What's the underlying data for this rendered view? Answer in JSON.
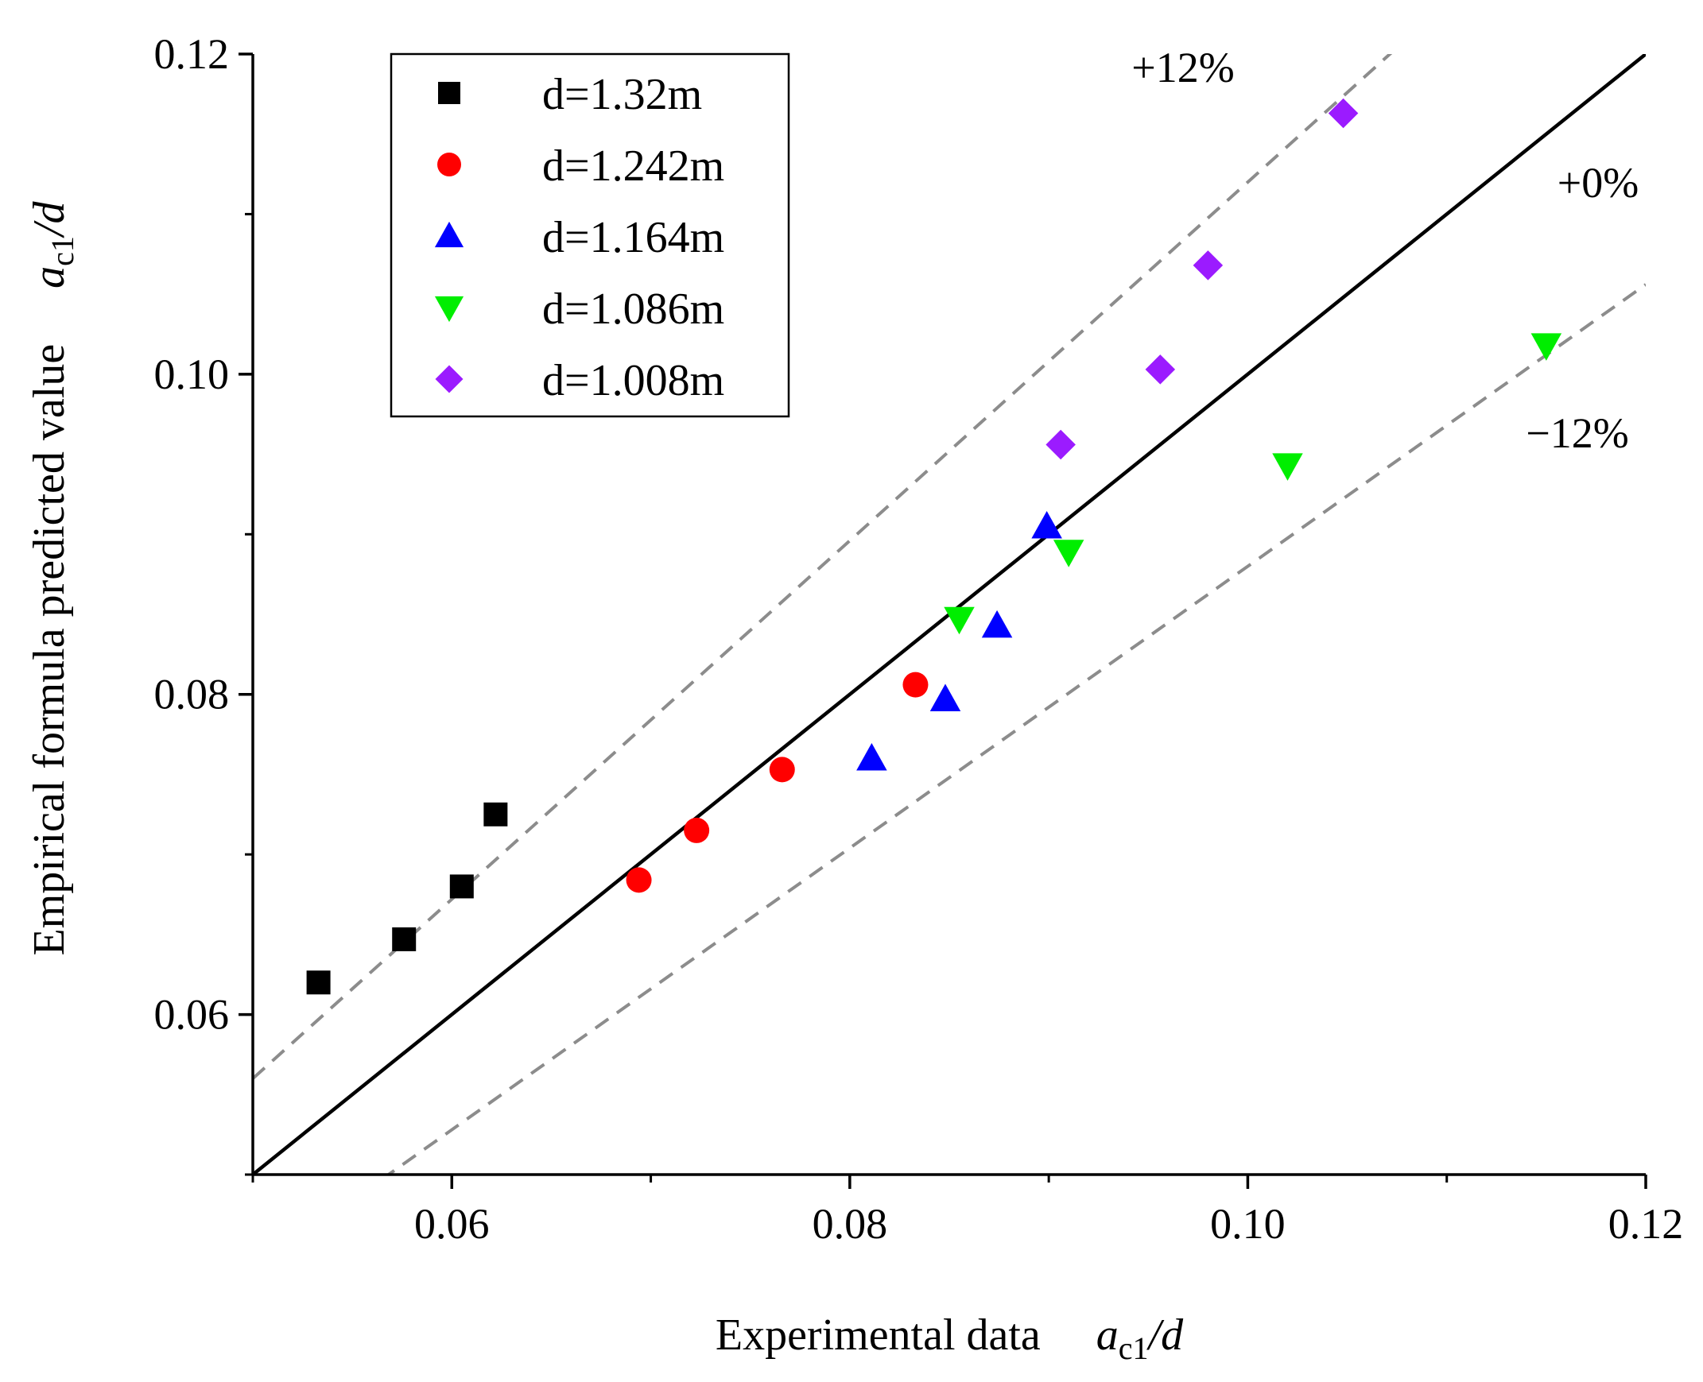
{
  "chart_data": {
    "type": "scatter",
    "xlabel": {
      "text": "Experimental data",
      "var": "a",
      "sub": "c1",
      "rest": "/d"
    },
    "ylabel": {
      "text": "Empirical formula predicted value",
      "var": "a",
      "sub": "c1",
      "rest": "/d"
    },
    "xlim": [
      0.05,
      0.12
    ],
    "ylim": [
      0.05,
      0.12
    ],
    "xticks": [
      {
        "value": 0.06,
        "label": "0.06"
      },
      {
        "value": 0.08,
        "label": "0.08"
      },
      {
        "value": 0.1,
        "label": "0.10"
      },
      {
        "value": 0.12,
        "label": "0.12"
      }
    ],
    "yticks": [
      {
        "value": 0.06,
        "label": "0.06"
      },
      {
        "value": 0.08,
        "label": "0.08"
      },
      {
        "value": 0.1,
        "label": "0.10"
      },
      {
        "value": 0.12,
        "label": "0.12"
      }
    ],
    "minor_tick_step": 0.01,
    "reference_lines": [
      {
        "name": "+12%",
        "factor": 1.12,
        "style": "dashed",
        "color": "#8c8c8c",
        "label": "+12%"
      },
      {
        "name": "+0%",
        "factor": 1.0,
        "style": "solid",
        "color": "#000000",
        "label": "+0%"
      },
      {
        "name": "-12%",
        "factor": 0.88,
        "style": "dashed",
        "color": "#8c8c8c",
        "label": "−12%"
      }
    ],
    "series": [
      {
        "name": "d=1.32m",
        "marker": "square",
        "color": "#000000",
        "points": [
          [
            0.0533,
            0.062
          ],
          [
            0.0576,
            0.0647
          ],
          [
            0.0605,
            0.068
          ],
          [
            0.0622,
            0.0725
          ]
        ]
      },
      {
        "name": "d=1.242m",
        "marker": "circle",
        "color": "#ff0000",
        "points": [
          [
            0.0694,
            0.0684
          ],
          [
            0.0723,
            0.0715
          ],
          [
            0.0766,
            0.0753
          ],
          [
            0.0833,
            0.0806
          ]
        ]
      },
      {
        "name": "d=1.164m",
        "marker": "triangle-up",
        "color": "#0000ff",
        "points": [
          [
            0.0811,
            0.076
          ],
          [
            0.0848,
            0.0797
          ],
          [
            0.0874,
            0.0843
          ],
          [
            0.0899,
            0.0905
          ]
        ]
      },
      {
        "name": "d=1.086m",
        "marker": "triangle-down",
        "color": "#00ee00",
        "points": [
          [
            0.0855,
            0.0847
          ],
          [
            0.091,
            0.0889
          ],
          [
            0.102,
            0.0943
          ],
          [
            0.115,
            0.1018
          ]
        ]
      },
      {
        "name": "d=1.008m",
        "marker": "diamond",
        "color": "#9b1bff",
        "points": [
          [
            0.0906,
            0.0956
          ],
          [
            0.0956,
            0.1003
          ],
          [
            0.098,
            0.1068
          ],
          [
            0.1048,
            0.1163
          ]
        ]
      }
    ],
    "legend": {
      "position": "top-left"
    }
  }
}
